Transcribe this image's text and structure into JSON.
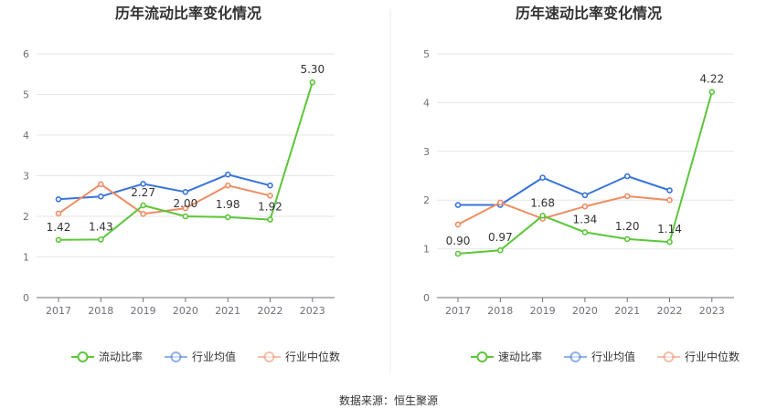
{
  "source_label": "数据来源：恒生聚源",
  "chart_data": [
    {
      "type": "line",
      "title": "历年流动比率变化情况",
      "categories": [
        "2017",
        "2018",
        "2019",
        "2020",
        "2021",
        "2022",
        "2023"
      ],
      "ylim": [
        0,
        6
      ],
      "yticks": [
        0,
        1,
        2,
        3,
        4,
        5,
        6
      ],
      "grid": true,
      "legend_position": "bottom",
      "series": [
        {
          "name": "流动比率",
          "color": "#5cc63a",
          "labeled": true,
          "values": [
            1.42,
            1.43,
            2.27,
            2.0,
            1.98,
            1.92,
            5.3
          ],
          "labels": [
            "1.42",
            "1.43",
            "2.27",
            "2.00",
            "1.98",
            "1.92",
            "5.30"
          ]
        },
        {
          "name": "行业均值",
          "color": "#3a74d9",
          "labeled": false,
          "values": [
            2.42,
            2.49,
            2.8,
            2.6,
            3.03,
            2.76,
            null
          ]
        },
        {
          "name": "行业中位数",
          "color": "#ef8c63",
          "labeled": false,
          "values": [
            2.07,
            2.79,
            2.06,
            2.2,
            2.76,
            2.51,
            null
          ]
        }
      ]
    },
    {
      "type": "line",
      "title": "历年速动比率变化情况",
      "categories": [
        "2017",
        "2018",
        "2019",
        "2020",
        "2021",
        "2022",
        "2023"
      ],
      "ylim": [
        0,
        5
      ],
      "yticks": [
        0,
        1,
        2,
        3,
        4,
        5
      ],
      "grid": true,
      "legend_position": "bottom",
      "series": [
        {
          "name": "速动比率",
          "color": "#5cc63a",
          "labeled": true,
          "values": [
            0.9,
            0.97,
            1.68,
            1.34,
            1.2,
            1.14,
            4.22
          ],
          "labels": [
            "0.90",
            "0.97",
            "1.68",
            "1.34",
            "1.20",
            "1.14",
            "4.22"
          ]
        },
        {
          "name": "行业均值",
          "color": "#3a74d9",
          "labeled": false,
          "values": [
            1.9,
            1.9,
            2.46,
            2.1,
            2.49,
            2.2,
            null
          ]
        },
        {
          "name": "行业中位数",
          "color": "#ef8c63",
          "labeled": false,
          "values": [
            1.5,
            1.95,
            1.62,
            1.87,
            2.08,
            2.0,
            null
          ]
        }
      ]
    }
  ]
}
